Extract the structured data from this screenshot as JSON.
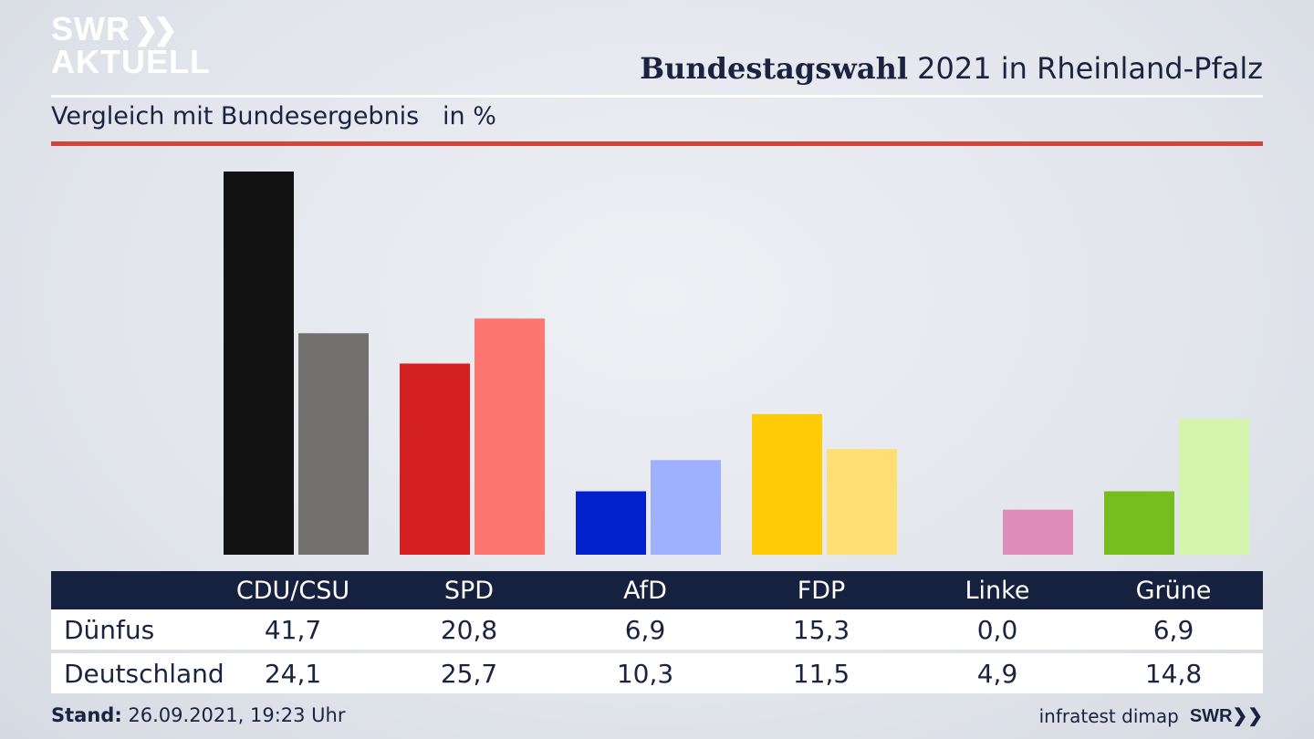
{
  "header": {
    "logo_line1": "SWR",
    "logo_line2": "AKTUELL",
    "title_bold": "Bundestagswahl",
    "title_rest": " 2021 in Rheinland-Pfalz",
    "subtitle": "Vergleich mit Bundesergebnis   in %"
  },
  "colors": {
    "local": [
      "#121212",
      "#d42020",
      "#0021cc",
      "#ffcb06",
      "#e0a8cc",
      "#78bd1e"
    ],
    "national": [
      "#727170",
      "#ff7670",
      "#9fb0ff",
      "#ffdf73",
      "#df8db9",
      "#d3f5ac"
    ],
    "header_bg": "#15213f",
    "accent_red": "#d1453a"
  },
  "chart_data": {
    "type": "bar",
    "categories": [
      "CDU/CSU",
      "SPD",
      "AfD",
      "FDP",
      "Linke",
      "Grüne"
    ],
    "series": [
      {
        "name": "Dünfus",
        "values": [
          41.7,
          20.8,
          6.9,
          15.3,
          0.0,
          6.9
        ]
      },
      {
        "name": "Deutschland",
        "values": [
          24.1,
          25.7,
          10.3,
          11.5,
          4.9,
          14.8
        ]
      }
    ],
    "ylim": [
      0,
      41.7
    ],
    "grid": false,
    "legend": "table-below"
  },
  "table": {
    "rows": [
      {
        "label": "Dünfus",
        "values": [
          "41,7",
          "20,8",
          "6,9",
          "15,3",
          "0,0",
          "6,9"
        ]
      },
      {
        "label": "Deutschland",
        "values": [
          "24,1",
          "25,7",
          "10,3",
          "11,5",
          "4,9",
          "14,8"
        ]
      }
    ]
  },
  "footer": {
    "stand_label": "Stand:",
    "stand_value": " 26.09.2021, 19:23 Uhr",
    "source": "infratest dimap",
    "brand": "SWR"
  }
}
